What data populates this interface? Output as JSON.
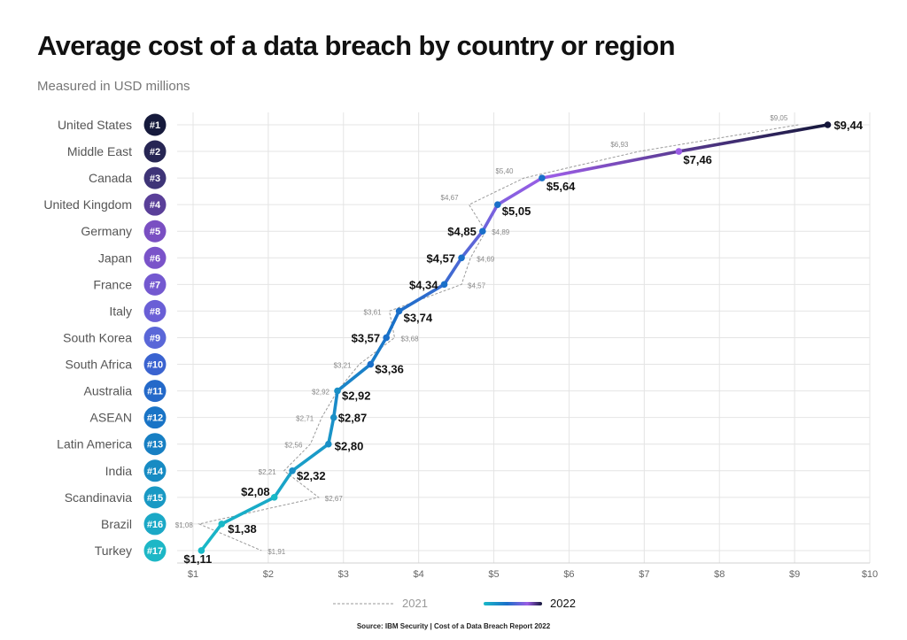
{
  "header": {
    "title": "Average cost of a data breach by country or region",
    "subtitle": "Measured in USD millions"
  },
  "footer": {
    "source": "Source: IBM Security | Cost of a Data Breach Report 2022"
  },
  "colors": {
    "rank_badges": [
      "#161a3c",
      "#272654",
      "#3e3477",
      "#5a3f99",
      "#7a4fc2",
      "#7a53c9",
      "#7459d0",
      "#6a5fd6",
      "#5a67d8",
      "#3a63d0",
      "#2469c9",
      "#1974c6",
      "#177fc3",
      "#178bc3",
      "#1999c4",
      "#1ba8c6",
      "#1db7c6"
    ],
    "line_2022_bottom": "#19b9c7",
    "line_2022_mid": "#1a6fc9",
    "line_2022_purple": "#9b5de5",
    "line_2022_top": "#14163a",
    "line_2021": "#9a9a9a",
    "grid": "#e4e4e4"
  },
  "chart_data": {
    "type": "line",
    "title": "Average cost of a data breach by country or region",
    "subtitle": "Measured in USD millions",
    "xlabel": "",
    "ylabel": "",
    "xlim": [
      1,
      10
    ],
    "x_ticks": [
      "$1",
      "$2",
      "$3",
      "$4",
      "$5",
      "$6",
      "$7",
      "$8",
      "$9",
      "$10"
    ],
    "categories": [
      "United States",
      "Middle East",
      "Canada",
      "United Kingdom",
      "Germany",
      "Japan",
      "France",
      "Italy",
      "South Korea",
      "South Africa",
      "Australia",
      "ASEAN",
      "Latin America",
      "India",
      "Scandinavia",
      "Brazil",
      "Turkey"
    ],
    "ranks": [
      "#1",
      "#2",
      "#3",
      "#4",
      "#5",
      "#6",
      "#7",
      "#8",
      "#9",
      "#10",
      "#11",
      "#12",
      "#13",
      "#14",
      "#15",
      "#16",
      "#17"
    ],
    "legend": [
      "2021",
      "2022"
    ],
    "series": [
      {
        "name": "2021",
        "values": [
          9.05,
          6.93,
          5.4,
          4.67,
          4.89,
          4.69,
          4.57,
          3.61,
          3.68,
          3.21,
          2.92,
          2.71,
          2.56,
          2.21,
          2.67,
          1.08,
          1.91
        ],
        "labels": [
          "$9,05",
          "$6,93",
          "$5,40",
          "$4,67",
          "$4,89",
          "$4,69",
          "$4,57",
          "$3,61",
          "$3,68",
          "$3,21",
          "$2,92",
          "$2,71",
          "$2,56",
          "$2,21",
          "$2,67",
          "$1,08",
          "$1,91"
        ]
      },
      {
        "name": "2022",
        "values": [
          9.44,
          7.46,
          5.64,
          5.05,
          4.85,
          4.57,
          4.34,
          3.74,
          3.57,
          3.36,
          2.92,
          2.87,
          2.8,
          2.32,
          2.08,
          1.38,
          1.11
        ],
        "labels": [
          "$9,44",
          "$7,46",
          "$5,64",
          "$5,05",
          "$4,85",
          "$4,57",
          "$4,34",
          "$3,74",
          "$3,57",
          "$3,36",
          "$2,92",
          "$2,87",
          "$2,80",
          "$2,32",
          "$2,08",
          "$1,38",
          "$1,11"
        ]
      }
    ]
  }
}
